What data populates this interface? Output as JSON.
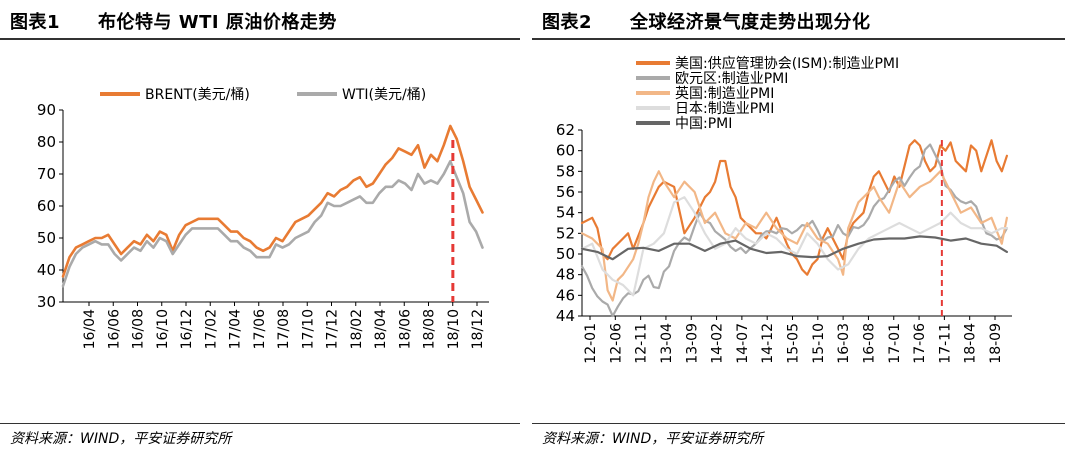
{
  "chart1": {
    "title_num": "图表1",
    "title_text": "布伦特与 WTI 原油价格走势",
    "source": "资料来源：WIND，平安证券研究所"
  },
  "chart2": {
    "title_num": "图表2",
    "title_text": "全球经济景气度走势出现分化",
    "source": "资料来源：WIND，平安证券研究所"
  },
  "chart_data": [
    {
      "type": "line",
      "title": "布伦特与 WTI 原油价格走势",
      "ylim": [
        30,
        90
      ],
      "yticks": [
        "30",
        "40",
        "50",
        "60",
        "70",
        "80",
        "90"
      ],
      "xlim": [
        0,
        33
      ],
      "xticks": [
        "16/04",
        "16/06",
        "16/08",
        "16/10",
        "16/12",
        "17/02",
        "17/04",
        "17/06",
        "17/08",
        "17/10",
        "17/12",
        "18/02",
        "18/04",
        "18/06",
        "18/08",
        "18/10",
        "18/12"
      ],
      "legend": "top",
      "marker_x": 30.2,
      "series": [
        {
          "name": "BRENT(美元/桶)",
          "color": "#E87B33",
          "x": [
            0,
            0.5,
            1,
            1.5,
            2,
            2.5,
            3,
            3.5,
            4,
            4.5,
            5,
            5.5,
            6,
            6.5,
            7,
            7.5,
            8,
            8.5,
            9,
            9.5,
            10,
            10.5,
            11,
            11.5,
            12,
            12.5,
            13,
            13.5,
            14,
            14.5,
            15,
            15.5,
            16,
            16.5,
            17,
            17.5,
            18,
            18.5,
            19,
            19.5,
            20,
            20.5,
            21,
            21.5,
            22,
            22.5,
            23,
            23.5,
            24,
            24.5,
            25,
            25.5,
            26,
            26.5,
            27,
            27.5,
            28,
            28.5,
            29,
            29.5,
            30,
            30.5,
            31,
            31.5,
            32,
            32.5
          ],
          "values": [
            38,
            44,
            47,
            48,
            49,
            50,
            50,
            51,
            48,
            45,
            47,
            49,
            48,
            51,
            49,
            52,
            51,
            46,
            51,
            54,
            55,
            56,
            56,
            56,
            56,
            54,
            52,
            52,
            50,
            49,
            47,
            46,
            47,
            50,
            49,
            52,
            55,
            56,
            57,
            59,
            61,
            64,
            63,
            65,
            66,
            68,
            69,
            66,
            67,
            70,
            73,
            75,
            78,
            77,
            76,
            79,
            72,
            76,
            74,
            79,
            85,
            81,
            74,
            66,
            62,
            58
          ]
        },
        {
          "name": "WTI(美元/桶)",
          "color": "#AAAAAA",
          "x": [
            0,
            0.5,
            1,
            1.5,
            2,
            2.5,
            3,
            3.5,
            4,
            4.5,
            5,
            5.5,
            6,
            6.5,
            7,
            7.5,
            8,
            8.5,
            9,
            9.5,
            10,
            10.5,
            11,
            11.5,
            12,
            12.5,
            13,
            13.5,
            14,
            14.5,
            15,
            15.5,
            16,
            16.5,
            17,
            17.5,
            18,
            18.5,
            19,
            19.5,
            20,
            20.5,
            21,
            21.5,
            22,
            22.5,
            23,
            23.5,
            24,
            24.5,
            25,
            25.5,
            26,
            26.5,
            27,
            27.5,
            28,
            28.5,
            29,
            29.5,
            30,
            30.5,
            31,
            31.5,
            32,
            32.5
          ],
          "values": [
            35,
            41,
            45,
            47,
            48,
            49,
            48,
            48,
            45,
            43,
            45,
            47,
            46,
            49,
            47,
            50,
            49,
            45,
            48,
            51,
            53,
            53,
            53,
            53,
            53,
            51,
            49,
            49,
            47,
            46,
            44,
            44,
            44,
            48,
            47,
            48,
            50,
            51,
            52,
            55,
            57,
            61,
            60,
            60,
            61,
            62,
            63,
            61,
            61,
            64,
            66,
            66,
            68,
            67,
            65,
            70,
            67,
            68,
            67,
            70,
            74,
            69,
            64,
            55,
            52,
            47
          ]
        }
      ]
    },
    {
      "type": "line",
      "title": "全球经济景气度走势出现分化",
      "ylim": [
        44,
        62
      ],
      "yticks": [
        "44",
        "46",
        "48",
        "50",
        "52",
        "54",
        "56",
        "58",
        "60",
        "62"
      ],
      "xlim": [
        0,
        84
      ],
      "xticks": [
        "12-01",
        "12-06",
        "12-11",
        "13-04",
        "13-09",
        "14-02",
        "14-07",
        "14-12",
        "15-05",
        "15-10",
        "16-03",
        "16-08",
        "17-01",
        "17-06",
        "17-11",
        "18-04",
        "18-09"
      ],
      "legend": "top-left",
      "marker_x": 70.3,
      "series": [
        {
          "name": "美国:供应管理协会(ISM):制造业PMI",
          "color": "#E87B33",
          "x": [
            0,
            2,
            3,
            4,
            5,
            6,
            8,
            9,
            10,
            12,
            13,
            15,
            16,
            18,
            20,
            22,
            24,
            25,
            26,
            27,
            28,
            29,
            30,
            31,
            32,
            33,
            34,
            35,
            36,
            37,
            38,
            40,
            41,
            42,
            43,
            44,
            45,
            46,
            47,
            48,
            49,
            50,
            51,
            52,
            53,
            54,
            55,
            56,
            57,
            58,
            59,
            60,
            61,
            62,
            63,
            64,
            65,
            66,
            67,
            68,
            69,
            70,
            71,
            72,
            73,
            74,
            75,
            76,
            77,
            78,
            79,
            80,
            81,
            82,
            83
          ],
          "values": [
            53.0,
            53.5,
            52.5,
            50.0,
            49.5,
            50.5,
            51.5,
            52.0,
            50.5,
            53.0,
            54.5,
            56.5,
            57.0,
            56.5,
            52.0,
            53.5,
            55.5,
            56.0,
            57.0,
            59.0,
            59.0,
            56.5,
            55.5,
            53.5,
            53.0,
            52.5,
            52.0,
            52.0,
            51.5,
            52.5,
            53.5,
            51.0,
            50.0,
            49.5,
            48.5,
            48.0,
            49.0,
            49.5,
            51.5,
            52.5,
            51.5,
            50.5,
            49.5,
            52.0,
            53.0,
            53.5,
            54.0,
            56.0,
            57.5,
            58.0,
            57.0,
            56.0,
            57.5,
            56.5,
            58.5,
            60.5,
            61.0,
            60.5,
            59.0,
            58.0,
            58.5,
            60.5,
            60.0,
            60.8,
            59.0,
            58.5,
            58.0,
            60.5,
            60.0,
            58.0,
            59.5,
            61.0,
            59.0,
            58.0,
            59.5
          ]
        },
        {
          "name": "欧元区:制造业PMI",
          "color": "#AAAAAA",
          "x": [
            0,
            1,
            2,
            3,
            4,
            5,
            6,
            7,
            8,
            9,
            10,
            11,
            12,
            13,
            14,
            15,
            16,
            17,
            18,
            19,
            20,
            21,
            22,
            23,
            24,
            25,
            26,
            27,
            28,
            29,
            30,
            31,
            32,
            33,
            34,
            35,
            36,
            37,
            38,
            39,
            40,
            41,
            42,
            43,
            44,
            45,
            46,
            47,
            48,
            49,
            50,
            51,
            52,
            53,
            54,
            55,
            56,
            57,
            58,
            59,
            60,
            61,
            62,
            63,
            64,
            65,
            66,
            67,
            68,
            69,
            70,
            71,
            72,
            73,
            74,
            75,
            76,
            77,
            78,
            79,
            80,
            81,
            82,
            83
          ],
          "values": [
            48.8,
            47.9,
            46.7,
            45.9,
            45.4,
            45.1,
            44.0,
            44.9,
            45.7,
            46.2,
            46.1,
            46.4,
            47.5,
            47.9,
            46.8,
            46.7,
            48.3,
            48.8,
            50.3,
            51.1,
            51.6,
            51.3,
            52.7,
            54.0,
            53.2,
            53.0,
            52.2,
            51.8,
            51.4,
            50.7,
            50.3,
            50.6,
            50.1,
            50.6,
            51.0,
            51.8,
            52.2,
            52.2,
            52.0,
            52.5,
            52.4,
            52.0,
            52.3,
            52.8,
            52.7,
            53.2,
            52.3,
            51.2,
            51.6,
            51.7,
            52.8,
            52.0,
            51.7,
            52.6,
            52.5,
            52.8,
            53.5,
            54.6,
            55.2,
            55.4,
            56.2,
            57.0,
            57.4,
            56.6,
            57.4,
            58.1,
            58.5,
            60.1,
            60.6,
            59.6,
            58.6,
            56.6,
            56.2,
            55.5,
            55.1,
            54.9,
            55.1,
            54.6,
            53.2,
            52.0,
            51.8,
            51.4,
            51.6,
            52.5
          ]
        },
        {
          "name": "英国:制造业PMI",
          "color": "#F2B787",
          "x": [
            0,
            2,
            4,
            5,
            6,
            7,
            8,
            10,
            11,
            12,
            13,
            14,
            15,
            16,
            18,
            20,
            22,
            24,
            26,
            28,
            30,
            32,
            34,
            36,
            38,
            40,
            42,
            44,
            46,
            48,
            50,
            51,
            52,
            54,
            56,
            57,
            58,
            60,
            62,
            64,
            66,
            68,
            70,
            72,
            74,
            76,
            78,
            80,
            82,
            83
          ],
          "values": [
            52.0,
            51.5,
            50.5,
            46.5,
            45.5,
            47.5,
            48.0,
            49.5,
            51.0,
            53.0,
            55.5,
            57.0,
            58.0,
            57.0,
            55.5,
            57.0,
            56.0,
            53.0,
            54.0,
            52.0,
            51.5,
            53.0,
            52.5,
            54.0,
            52.5,
            51.5,
            51.0,
            53.0,
            51.5,
            51.0,
            49.5,
            48.0,
            52.5,
            55.0,
            56.0,
            56.5,
            55.5,
            54.0,
            57.0,
            55.5,
            56.5,
            57.0,
            58.0,
            56.0,
            54.0,
            54.5,
            53.0,
            53.5,
            51.0,
            53.5
          ]
        },
        {
          "name": "日本:制造业PMI",
          "color": "#DDDDDD",
          "x": [
            0,
            2,
            4,
            6,
            8,
            10,
            12,
            14,
            16,
            18,
            20,
            22,
            24,
            26,
            28,
            30,
            32,
            34,
            36,
            38,
            40,
            42,
            44,
            46,
            48,
            50,
            52,
            54,
            56,
            58,
            60,
            62,
            64,
            66,
            68,
            70,
            72,
            74,
            76,
            78,
            80,
            82,
            83
          ],
          "values": [
            50.5,
            51.0,
            48.5,
            47.5,
            47.0,
            46.0,
            50.5,
            51.0,
            52.0,
            55.0,
            55.5,
            54.0,
            52.0,
            50.5,
            51.0,
            52.5,
            51.5,
            51.0,
            52.0,
            51.5,
            50.5,
            50.0,
            52.0,
            51.0,
            49.5,
            48.5,
            49.0,
            50.5,
            51.5,
            52.0,
            52.5,
            53.0,
            52.5,
            52.0,
            52.5,
            53.0,
            54.0,
            53.0,
            52.5,
            52.5,
            52.0,
            52.5,
            52.5
          ]
        },
        {
          "name": "中国:PMI",
          "color": "#666666",
          "x": [
            0,
            3,
            6,
            9,
            12,
            15,
            18,
            21,
            24,
            27,
            30,
            33,
            36,
            39,
            42,
            45,
            48,
            51,
            54,
            57,
            60,
            63,
            66,
            69,
            72,
            75,
            78,
            81,
            83
          ],
          "values": [
            50.5,
            50.2,
            49.5,
            50.5,
            50.6,
            50.3,
            51.0,
            51.0,
            50.3,
            51.0,
            51.3,
            50.5,
            50.1,
            50.2,
            49.8,
            49.7,
            49.8,
            50.5,
            51.0,
            51.4,
            51.5,
            51.5,
            51.7,
            51.6,
            51.3,
            51.5,
            51.0,
            50.8,
            50.2
          ]
        }
      ]
    }
  ]
}
